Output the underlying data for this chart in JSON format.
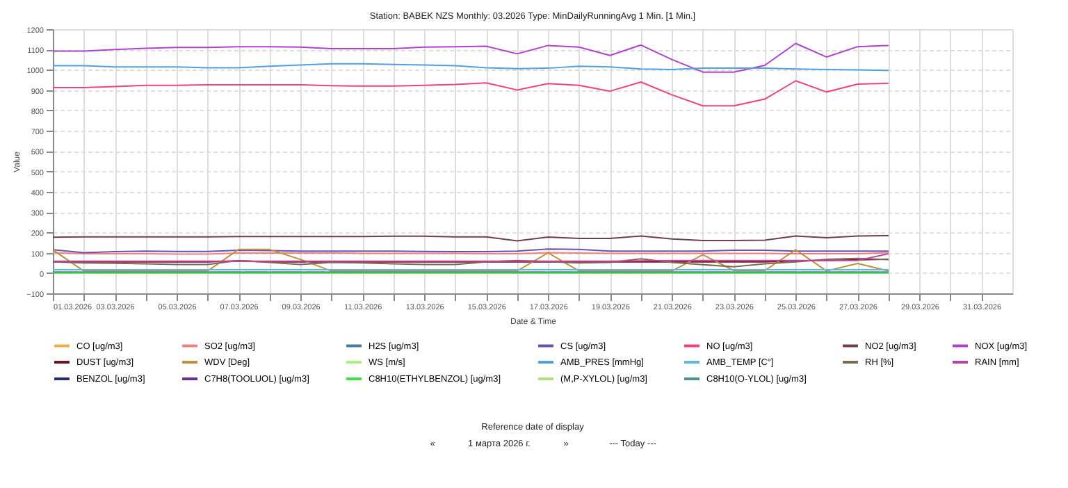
{
  "chart_data": {
    "type": "line",
    "title": "Station: BABEK NZS  Monthly: 03.2026  Type: MinDailyRunningAvg 1 Min. [1 Min.]",
    "xlabel": "Date & Time",
    "ylabel": "Value",
    "x": [
      "2026-03-01",
      "2026-03-02",
      "2026-03-03",
      "2026-03-04",
      "2026-03-05",
      "2026-03-06",
      "2026-03-07",
      "2026-03-08",
      "2026-03-09",
      "2026-03-10",
      "2026-03-11",
      "2026-03-12",
      "2026-03-13",
      "2026-03-14",
      "2026-03-15",
      "2026-03-16",
      "2026-03-17",
      "2026-03-18",
      "2026-03-19",
      "2026-03-20",
      "2026-03-21",
      "2026-03-22",
      "2026-03-23",
      "2026-03-24",
      "2026-03-25",
      "2026-03-26",
      "2026-03-27",
      "2026-03-28"
    ],
    "xlim": [
      "2026-03-01",
      "2026-04-01"
    ],
    "xticks": [
      {
        "value": "2026-03-01",
        "label": "01.03.2026"
      },
      {
        "value": "2026-03-02",
        "label": null
      },
      {
        "value": "2026-03-03",
        "label": "03.03.2026"
      },
      {
        "value": "2026-03-04",
        "label": null
      },
      {
        "value": "2026-03-05",
        "label": "05.03.2026"
      },
      {
        "value": "2026-03-06",
        "label": null
      },
      {
        "value": "2026-03-07",
        "label": "07.03.2026"
      },
      {
        "value": "2026-03-08",
        "label": null
      },
      {
        "value": "2026-03-09",
        "label": "09.03.2026"
      },
      {
        "value": "2026-03-10",
        "label": null
      },
      {
        "value": "2026-03-11",
        "label": "11.03.2026"
      },
      {
        "value": "2026-03-12",
        "label": null
      },
      {
        "value": "2026-03-13",
        "label": "13.03.2026"
      },
      {
        "value": "2026-03-14",
        "label": null
      },
      {
        "value": "2026-03-15",
        "label": "15.03.2026"
      },
      {
        "value": "2026-03-16",
        "label": null
      },
      {
        "value": "2026-03-17",
        "label": "17.03.2026"
      },
      {
        "value": "2026-03-18",
        "label": null
      },
      {
        "value": "2026-03-19",
        "label": "19.03.2026"
      },
      {
        "value": "2026-03-20",
        "label": null
      },
      {
        "value": "2026-03-21",
        "label": "21.03.2026"
      },
      {
        "value": "2026-03-22",
        "label": null
      },
      {
        "value": "2026-03-23",
        "label": "23.03.2026"
      },
      {
        "value": "2026-03-24",
        "label": null
      },
      {
        "value": "2026-03-25",
        "label": "25.03.2026"
      },
      {
        "value": "2026-03-26",
        "label": null
      },
      {
        "value": "2026-03-27",
        "label": "27.03.2026"
      },
      {
        "value": "2026-03-28",
        "label": null
      },
      {
        "value": "2026-03-29",
        "label": "29.03.2026"
      },
      {
        "value": "2026-03-30",
        "label": null
      },
      {
        "value": "2026-03-31",
        "label": "31.03.2026"
      }
    ],
    "ylim": [
      -100,
      1200
    ],
    "yticks": [
      -100,
      0,
      100,
      200,
      300,
      400,
      500,
      600,
      700,
      800,
      900,
      1000,
      1100,
      1200
    ],
    "grid": true,
    "legend": "bottom",
    "marker": "none",
    "line_style": "solid",
    "annotations": [
      "Reference date of display",
      "«",
      "1   марта   2026 г.",
      "»",
      "--- Today ---"
    ],
    "series": [
      {
        "name": "CO [ug/m3]",
        "color": "#f0b040",
        "values": [
          null,
          null,
          null,
          null,
          null,
          null,
          null,
          null,
          null,
          null,
          null,
          null,
          null,
          null,
          null,
          null,
          null,
          null,
          null,
          null,
          null,
          null,
          null,
          null,
          null,
          null,
          null,
          null
        ]
      },
      {
        "name": "SO2 [ug/m3]",
        "color": "#f08080",
        "values": [
          100,
          95,
          95,
          95,
          93,
          93,
          98,
          98,
          98,
          98,
          97,
          97,
          97,
          97,
          95,
          95,
          100,
          98,
          97,
          97,
          97,
          97,
          97,
          97,
          95,
          95,
          95,
          100
        ]
      },
      {
        "name": "H2S [ug/m3]",
        "color": "#4a7aa0",
        "values": [
          null,
          null,
          null,
          null,
          null,
          null,
          null,
          null,
          null,
          null,
          null,
          null,
          null,
          null,
          null,
          null,
          null,
          null,
          null,
          null,
          null,
          null,
          null,
          null,
          null,
          null,
          null,
          null
        ]
      },
      {
        "name": "CS [ug/m3]",
        "color": "#6a50b0",
        "values": [
          115,
          100,
          105,
          108,
          106,
          106,
          112,
          110,
          108,
          108,
          108,
          108,
          106,
          105,
          105,
          108,
          118,
          116,
          108,
          108,
          108,
          108,
          112,
          112,
          108,
          108,
          108,
          108
        ]
      },
      {
        "name": "NO [ug/m3]",
        "color": "#f04080",
        "values": [
          913,
          913,
          918,
          924,
          924,
          926,
          926,
          926,
          926,
          922,
          920,
          920,
          924,
          928,
          936,
          901,
          932,
          924,
          895,
          940,
          877,
          823,
          823,
          856,
          946,
          891,
          930,
          934
        ]
      },
      {
        "name": "NO2 [ug/m3]",
        "color": "#704048",
        "values": [
          176,
          178,
          178,
          178,
          178,
          178,
          180,
          180,
          180,
          180,
          180,
          181,
          181,
          178,
          178,
          158,
          177,
          170,
          170,
          182,
          168,
          160,
          160,
          162,
          182,
          174,
          182,
          184
        ]
      },
      {
        "name": "NOX [ug/m3]",
        "color": "#b040d0",
        "values": [
          1092,
          1092,
          1100,
          1106,
          1110,
          1110,
          1114,
          1114,
          1112,
          1104,
          1104,
          1104,
          1112,
          1114,
          1116,
          1079,
          1120,
          1112,
          1071,
          1122,
          1051,
          989,
          989,
          1022,
          1130,
          1063,
          1114,
          1120
        ]
      },
      {
        "name": "DUST [ug/m3]",
        "color": "#701020",
        "values": [
          55,
          55,
          55,
          55,
          55,
          55,
          60,
          55,
          55,
          55,
          55,
          55,
          55,
          55,
          55,
          55,
          55,
          55,
          55,
          55,
          55,
          55,
          55,
          55,
          60,
          62,
          65,
          68
        ]
      },
      {
        "name": "WDV [Deg]",
        "color": "#c09040",
        "values": [
          114,
          10,
          10,
          10,
          10,
          10,
          116,
          116,
          67,
          10,
          10,
          10,
          10,
          10,
          10,
          10,
          100,
          10,
          10,
          10,
          10,
          90,
          12,
          12,
          114,
          10,
          47,
          10
        ]
      },
      {
        "name": "WS [m/s]",
        "color": "#b0f080",
        "values": [
          null,
          null,
          null,
          null,
          null,
          null,
          null,
          null,
          null,
          null,
          null,
          null,
          null,
          null,
          null,
          null,
          null,
          null,
          null,
          null,
          null,
          null,
          null,
          null,
          null,
          null,
          null,
          null
        ]
      },
      {
        "name": "AMB_PRES [mmHg]",
        "color": "#50a0e0",
        "values": [
          1020,
          1020,
          1014,
          1014,
          1014,
          1010,
          1010,
          1018,
          1024,
          1030,
          1030,
          1026,
          1024,
          1020,
          1010,
          1006,
          1008,
          1018,
          1014,
          1004,
          1002,
          1008,
          1008,
          1008,
          1004,
          1002,
          1000,
          997
        ]
      },
      {
        "name": "AMB_TEMP [C°]",
        "color": "#60b8d8",
        "values": [
          16,
          16,
          16,
          16,
          16,
          16,
          16,
          16,
          16,
          16,
          16,
          16,
          16,
          16,
          16,
          16,
          16,
          16,
          16,
          16,
          16,
          16,
          16,
          16,
          16,
          16,
          16,
          16
        ]
      },
      {
        "name": "RH [%]",
        "color": "#806850",
        "values": [
          55,
          50,
          48,
          45,
          42,
          42,
          62,
          52,
          42,
          52,
          50,
          45,
          42,
          42,
          55,
          62,
          56,
          50,
          52,
          70,
          52,
          41,
          31,
          45,
          55,
          68,
          72,
          66
        ]
      },
      {
        "name": "RAIN [mm]",
        "color": "#c040a0",
        "values": [
          58,
          58,
          58,
          58,
          58,
          58,
          58,
          58,
          58,
          58,
          58,
          58,
          58,
          58,
          58,
          58,
          58,
          58,
          58,
          60,
          62,
          62,
          62,
          62,
          62,
          62,
          62,
          95
        ]
      },
      {
        "name": "BENZOL [ug/m3]",
        "color": "#203070",
        "values": [
          null,
          null,
          null,
          null,
          null,
          null,
          null,
          null,
          null,
          null,
          null,
          null,
          null,
          null,
          null,
          null,
          null,
          null,
          null,
          null,
          null,
          null,
          null,
          null,
          null,
          null,
          null,
          null
        ]
      },
      {
        "name": "C7H8(TOOLUOL) [ug/m3]",
        "color": "#6a3090",
        "values": [
          null,
          null,
          null,
          null,
          null,
          null,
          null,
          null,
          null,
          null,
          null,
          null,
          null,
          null,
          null,
          null,
          null,
          null,
          null,
          null,
          null,
          null,
          null,
          null,
          null,
          null,
          null,
          null
        ]
      },
      {
        "name": "C8H10(ETHYLBENZOL) [ug/m3]",
        "color": "#40e040",
        "values": [
          0,
          0,
          0,
          0,
          0,
          0,
          0,
          0,
          0,
          0,
          0,
          0,
          0,
          0,
          0,
          0,
          0,
          0,
          0,
          0,
          0,
          0,
          0,
          0,
          0,
          0,
          0,
          0
        ]
      },
      {
        "name": "(M,P-XYLOL) [ug/m3]",
        "color": "#b0e080",
        "values": [
          null,
          null,
          null,
          null,
          null,
          null,
          null,
          null,
          null,
          null,
          null,
          null,
          null,
          null,
          null,
          null,
          null,
          null,
          null,
          null,
          null,
          null,
          null,
          null,
          null,
          null,
          null,
          null
        ]
      },
      {
        "name": "C8H10(O-YLOL) [ug/m3]",
        "color": "#509090",
        "values": [
          5,
          5,
          5,
          5,
          5,
          5,
          5,
          5,
          5,
          5,
          5,
          5,
          5,
          5,
          5,
          5,
          5,
          5,
          5,
          5,
          5,
          5,
          5,
          5,
          5,
          5,
          5,
          5
        ]
      }
    ]
  }
}
